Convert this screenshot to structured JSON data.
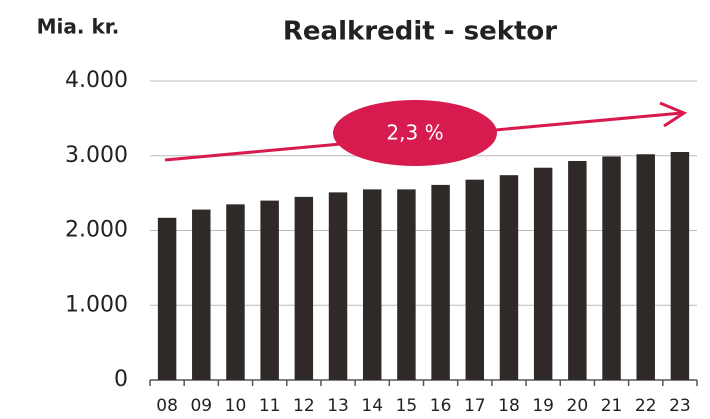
{
  "chart_data": {
    "type": "bar",
    "title": "Realkredit - sektor",
    "y_label": "Mia. kr.",
    "annotation": "2,3 %",
    "categories": [
      "08",
      "09",
      "10",
      "11",
      "12",
      "13",
      "14",
      "15",
      "16",
      "17",
      "18",
      "19",
      "20",
      "21",
      "22",
      "23"
    ],
    "values": [
      2170,
      2280,
      2350,
      2400,
      2450,
      2510,
      2550,
      2550,
      2610,
      2680,
      2740,
      2840,
      2930,
      2990,
      3020,
      3050
    ],
    "color": "#2f2a28",
    "ylim": [
      0,
      4000
    ],
    "yticks": [
      0,
      {
        "value": 1000,
        "label": "1.000"
      },
      {
        "value": 2000,
        "label": "2.000"
      },
      {
        "value": 3000,
        "label": "3.000"
      },
      {
        "value": 4000,
        "label": "4.000"
      }
    ],
    "grid": true
  }
}
